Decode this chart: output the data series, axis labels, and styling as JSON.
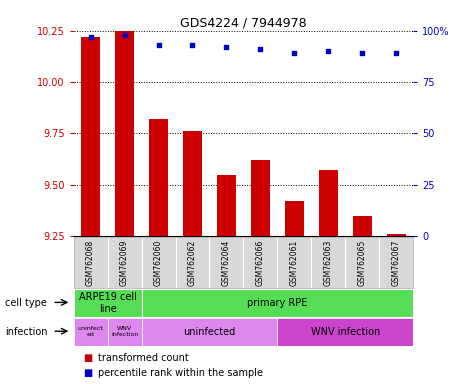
{
  "title": "GDS4224 / 7944978",
  "samples": [
    "GSM762068",
    "GSM762069",
    "GSM762060",
    "GSM762062",
    "GSM762064",
    "GSM762066",
    "GSM762061",
    "GSM762063",
    "GSM762065",
    "GSM762067"
  ],
  "transformed_count": [
    10.22,
    10.25,
    9.82,
    9.76,
    9.55,
    9.62,
    9.42,
    9.57,
    9.35,
    9.26
  ],
  "percentile_rank": [
    97,
    98,
    93,
    93,
    92,
    91,
    89,
    90,
    89,
    89
  ],
  "ylim_left": [
    9.25,
    10.25
  ],
  "ylim_right": [
    0,
    100
  ],
  "yticks_left": [
    9.25,
    9.5,
    9.75,
    10.0,
    10.25
  ],
  "yticks_right": [
    0,
    25,
    50,
    75,
    100
  ],
  "ytick_labels_right": [
    "0",
    "25",
    "50",
    "75",
    "100%"
  ],
  "bar_color": "#cc0000",
  "dot_color": "#0000cc",
  "bar_bottom": 9.25,
  "cell_type_green": "#55dd55",
  "infection_light": "#dd88ee",
  "infection_dark": "#cc44cc",
  "legend_labels": [
    "transformed count",
    "percentile rank within the sample"
  ],
  "legend_colors": [
    "#cc0000",
    "#0000cc"
  ],
  "left_tick_color": "#cc0000",
  "right_tick_color": "#0000cc",
  "background_color": "#ffffff",
  "title_fontsize": 9,
  "tick_fontsize": 7,
  "sample_fontsize": 5.5,
  "row_label_fontsize": 7,
  "cell_type_fontsize": 7,
  "infection_fontsize": 7,
  "legend_fontsize": 7
}
